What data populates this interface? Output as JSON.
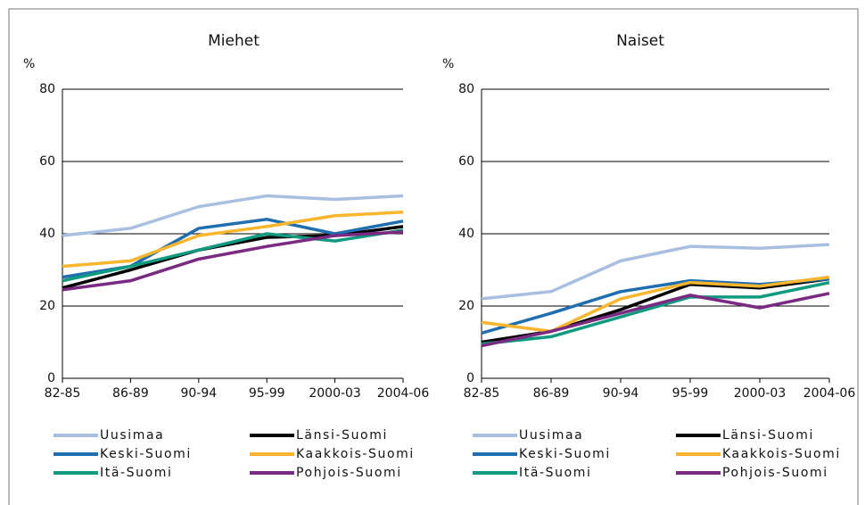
{
  "chart_data": [
    {
      "type": "line",
      "title": "Miehet",
      "y_label": "%",
      "categories": [
        "82-85",
        "86-89",
        "90-94",
        "95-99",
        "2000-03",
        "2004-06"
      ],
      "ylim": [
        0,
        80
      ],
      "yticks": [
        0,
        20,
        40,
        60,
        80
      ],
      "grid": true,
      "series": [
        {
          "name": "Uusimaa",
          "color": "#a9bfe0",
          "values": [
            39.5,
            41.5,
            47.5,
            50.5,
            49.5,
            50.5
          ]
        },
        {
          "name": "Länsi-Suomi",
          "color": "#000000",
          "values": [
            25,
            30,
            35.5,
            39,
            39.5,
            42
          ]
        },
        {
          "name": "Keski-Suomi",
          "color": "#1f6fb0",
          "values": [
            28,
            31,
            41.5,
            44,
            40,
            43.5
          ]
        },
        {
          "name": "Kaakkois-Suomi",
          "color": "#f9b52c",
          "values": [
            31,
            32.5,
            39.5,
            42,
            45,
            46
          ]
        },
        {
          "name": "Itä-Suomi",
          "color": "#109a80",
          "values": [
            27,
            31,
            35.5,
            40,
            38,
            41
          ]
        },
        {
          "name": "Pohjois-Suomi",
          "color": "#7b2a82",
          "values": [
            24.5,
            27,
            33,
            36.5,
            39.5,
            40.5
          ]
        }
      ]
    },
    {
      "type": "line",
      "title": "Naiset",
      "y_label": "%",
      "categories": [
        "82-85",
        "86-89",
        "90-94",
        "95-99",
        "2000-03",
        "2004-06"
      ],
      "ylim": [
        0,
        80
      ],
      "yticks": [
        0,
        20,
        40,
        60,
        80
      ],
      "grid": true,
      "series": [
        {
          "name": "Uusimaa",
          "color": "#a9bfe0",
          "values": [
            22,
            24,
            32.5,
            36.5,
            36,
            37
          ]
        },
        {
          "name": "Länsi-Suomi",
          "color": "#000000",
          "values": [
            10,
            13,
            19,
            26,
            25,
            27.5
          ]
        },
        {
          "name": "Keski-Suomi",
          "color": "#1f6fb0",
          "values": [
            12.5,
            18,
            24,
            27,
            26,
            27.5
          ]
        },
        {
          "name": "Kaakkois-Suomi",
          "color": "#f9b52c",
          "values": [
            15.5,
            13,
            22,
            26.5,
            25.5,
            28
          ]
        },
        {
          "name": "Itä-Suomi",
          "color": "#109a80",
          "values": [
            9.5,
            11.5,
            17,
            22.5,
            22.5,
            26.5
          ]
        },
        {
          "name": "Pohjois-Suomi",
          "color": "#7b2a82",
          "values": [
            9,
            13,
            18,
            23,
            19.5,
            23.5
          ]
        }
      ]
    }
  ]
}
